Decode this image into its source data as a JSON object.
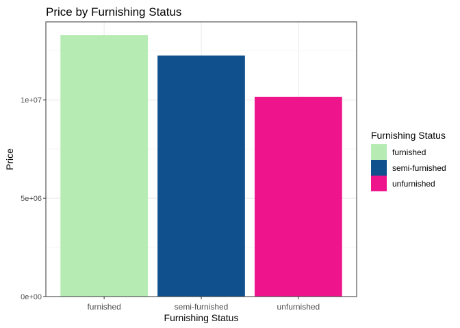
{
  "chart_data": {
    "type": "bar",
    "title": "Price by Furnishing Status",
    "xlabel": "Furnishing Status",
    "ylabel": "Price",
    "categories": [
      "furnished",
      "semi-furnished",
      "unfurnished"
    ],
    "values": [
      13300000,
      12250000,
      10150000
    ],
    "colors": [
      "#b6ecb4",
      "#10508c",
      "#ee148c"
    ],
    "ylim": [
      0,
      13965000
    ],
    "yticks": [
      0,
      5000000,
      10000000
    ],
    "ytick_labels": [
      "0e+00",
      "5e+06",
      "1e+07"
    ],
    "grid": true,
    "legend": {
      "title": "Furnishing Status",
      "position": "right",
      "entries": [
        "furnished",
        "semi-furnished",
        "unfurnished"
      ]
    }
  }
}
